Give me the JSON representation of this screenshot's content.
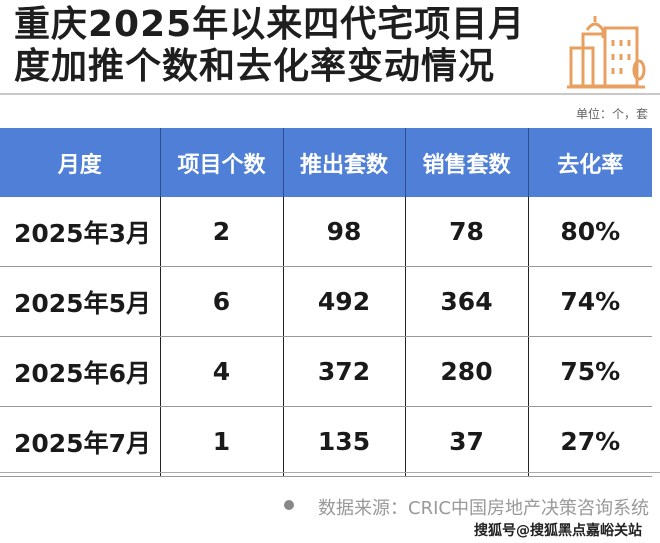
{
  "title": {
    "line1": "重庆2025年以来四代宅项目月",
    "line2": "度加推个数和去化率变动情况"
  },
  "unit": "单位：个，套",
  "table": {
    "headers": [
      "月度",
      "项目个数",
      "推出套数",
      "销售套数",
      "去化率"
    ],
    "rows": [
      [
        "2025年3月",
        "2",
        "98",
        "78",
        "80%"
      ],
      [
        "2025年5月",
        "6",
        "492",
        "364",
        "74%"
      ],
      [
        "2025年6月",
        "4",
        "372",
        "280",
        "75%"
      ],
      [
        "2025年7月",
        "1",
        "135",
        "37",
        "27%"
      ]
    ]
  },
  "source": "数据来源：CRIC中国房地产决策咨询系统",
  "watermark": "搜狐号@搜狐黑点嘉峪关站",
  "colors": {
    "header": "#4f7fd6",
    "logo": "#e8a060"
  },
  "logo_icon": "building-icon"
}
